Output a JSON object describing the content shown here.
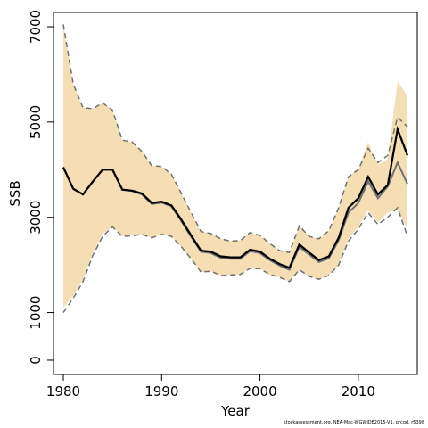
{
  "chart_data": {
    "type": "line",
    "xlabel": "Year",
    "ylabel": "SSB",
    "xlim": [
      1979,
      2016
    ],
    "ylim": [
      -300,
      7300
    ],
    "x_ticks": [
      1980,
      1990,
      2000,
      2010
    ],
    "y_ticks": [
      0,
      1000,
      3000,
      5000,
      7000
    ],
    "grid": false,
    "colors": {
      "band_fill": "#F5DEB3",
      "main_line": "#000000",
      "prev_line": "#707070",
      "bounds_dash": "#707070"
    },
    "x": [
      1980,
      1981,
      1982,
      1983,
      1984,
      1985,
      1986,
      1987,
      1988,
      1989,
      1990,
      1991,
      1992,
      1993,
      1994,
      1995,
      1996,
      1997,
      1998,
      1999,
      2000,
      2001,
      2002,
      2003,
      2004,
      2005,
      2006,
      2007,
      2008,
      2009,
      2010,
      2011,
      2012,
      2013,
      2014,
      2015
    ],
    "series": [
      {
        "values": [
          4050,
          3600,
          3480,
          3750,
          4000,
          4000,
          3580,
          3560,
          3500,
          3300,
          3330,
          3250,
          2950,
          2620,
          2300,
          2280,
          2180,
          2160,
          2160,
          2320,
          2280,
          2130,
          2020,
          1940,
          2430,
          2260,
          2100,
          2180,
          2570,
          3200,
          3400,
          3850,
          3480,
          3680,
          4850,
          4300
        ]
      },
      {
        "values": [
          4050,
          3600,
          3480,
          3750,
          4000,
          4000,
          3580,
          3550,
          3480,
          3280,
          3310,
          3230,
          2920,
          2590,
          2280,
          2250,
          2150,
          2130,
          2130,
          2290,
          2250,
          2100,
          1990,
          1900,
          2380,
          2220,
          2060,
          2140,
          2520,
          3100,
          3300,
          3750,
          3400,
          3650,
          4150,
          3700
        ]
      }
    ],
    "band": {
      "upper": [
        7050,
        5800,
        5300,
        5280,
        5400,
        5250,
        4620,
        4580,
        4380,
        4080,
        4070,
        3900,
        3500,
        3100,
        2700,
        2660,
        2550,
        2500,
        2510,
        2680,
        2620,
        2450,
        2300,
        2260,
        2820,
        2600,
        2550,
        2720,
        3200,
        3850,
        4000,
        4580,
        4100,
        4230,
        5850,
        5550
      ],
      "lower": [
        1100,
        1350,
        1700,
        2250,
        2650,
        2800,
        2600,
        2610,
        2640,
        2570,
        2640,
        2600,
        2380,
        2130,
        1850,
        1870,
        1780,
        1790,
        1800,
        1930,
        1920,
        1800,
        1740,
        1650,
        1900,
        1760,
        1700,
        1780,
        2000,
        2550,
        2800,
        3150,
        2900,
        3100,
        3150,
        2750
      ]
    },
    "bounds_dashed": {
      "upper": [
        7050,
        5800,
        5300,
        5280,
        5400,
        5250,
        4620,
        4580,
        4380,
        4080,
        4070,
        3900,
        3500,
        3100,
        2700,
        2660,
        2550,
        2500,
        2510,
        2680,
        2620,
        2450,
        2300,
        2260,
        2820,
        2600,
        2550,
        2720,
        3200,
        3850,
        4000,
        4450,
        4150,
        4300,
        5100,
        4900
      ],
      "lower": [
        1000,
        1300,
        1650,
        2200,
        2600,
        2800,
        2600,
        2610,
        2640,
        2570,
        2640,
        2600,
        2380,
        2130,
        1850,
        1870,
        1780,
        1790,
        1800,
        1930,
        1920,
        1800,
        1740,
        1650,
        1900,
        1760,
        1700,
        1780,
        2000,
        2500,
        2750,
        3100,
        2850,
        3000,
        3200,
        2600
      ]
    }
  },
  "footnote": "stockassessment.org, NEA-Mac-WGWIDE2015-V1, prcgd, r5398"
}
